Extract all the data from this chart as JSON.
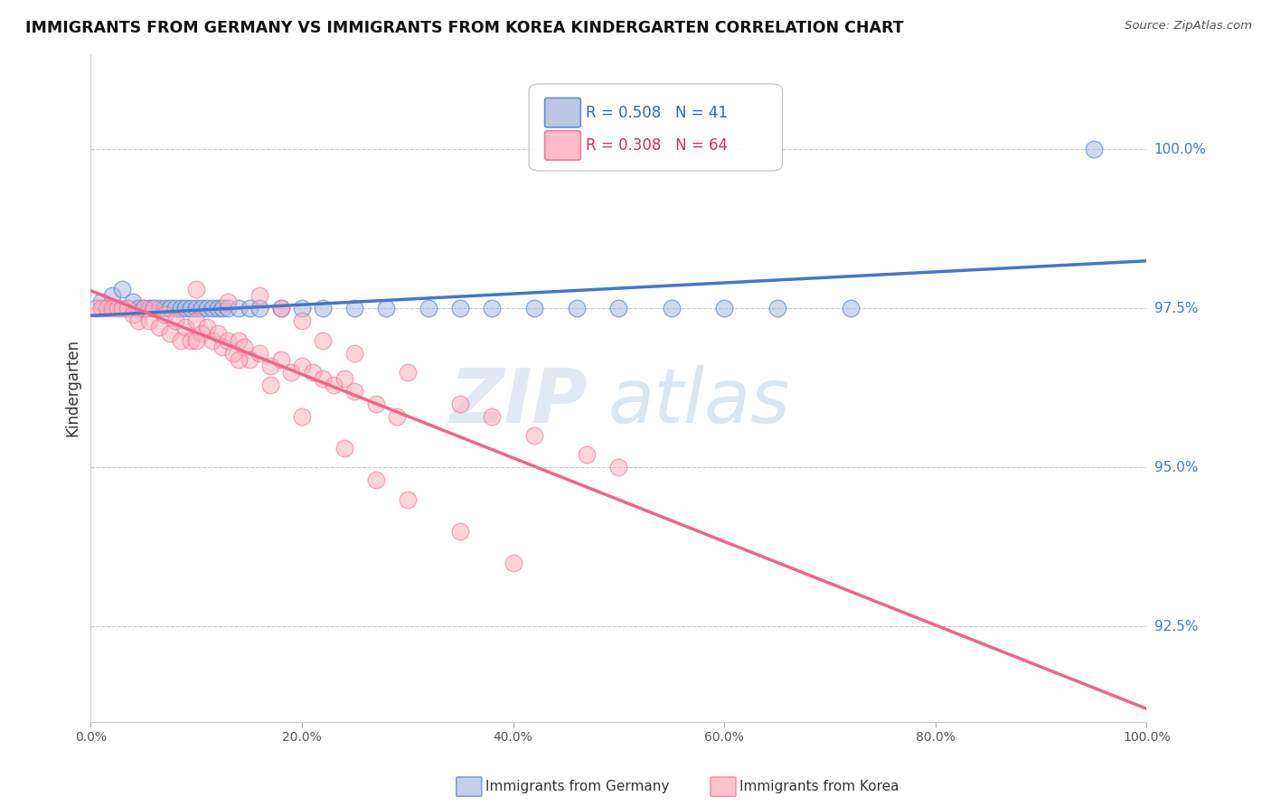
{
  "title": "IMMIGRANTS FROM GERMANY VS IMMIGRANTS FROM KOREA KINDERGARTEN CORRELATION CHART",
  "source": "Source: ZipAtlas.com",
  "ylabel": "Kindergarten",
  "right_yticks": [
    100.0,
    97.5,
    95.0,
    92.5
  ],
  "legend_germany": "R = 0.508   N = 41",
  "legend_korea": "R = 0.308   N = 64",
  "color_germany": "#aabbdd",
  "color_korea": "#ffaabb",
  "trend_germany_color": "#4477cc",
  "trend_korea_color": "#ee6688",
  "germany_scatter_x": [
    0.01,
    0.02,
    0.03,
    0.04,
    0.045,
    0.05,
    0.055,
    0.06,
    0.065,
    0.07,
    0.075,
    0.08,
    0.085,
    0.09,
    0.095,
    0.1,
    0.105,
    0.11,
    0.115,
    0.12,
    0.125,
    0.13,
    0.14,
    0.15,
    0.16,
    0.18,
    0.2,
    0.22,
    0.25,
    0.28,
    0.32,
    0.35,
    0.38,
    0.42,
    0.46,
    0.5,
    0.55,
    0.6,
    0.65,
    0.72,
    0.95
  ],
  "germany_scatter_y": [
    97.6,
    97.7,
    97.8,
    97.6,
    97.5,
    97.5,
    97.5,
    97.5,
    97.5,
    97.5,
    97.5,
    97.5,
    97.5,
    97.5,
    97.5,
    97.5,
    97.5,
    97.5,
    97.5,
    97.5,
    97.5,
    97.5,
    97.5,
    97.5,
    97.5,
    97.5,
    97.5,
    97.5,
    97.5,
    97.5,
    97.5,
    97.5,
    97.5,
    97.5,
    97.5,
    97.5,
    97.5,
    97.5,
    97.5,
    97.5,
    100.0
  ],
  "korea_scatter_x": [
    0.005,
    0.01,
    0.015,
    0.02,
    0.025,
    0.03,
    0.035,
    0.04,
    0.045,
    0.05,
    0.055,
    0.06,
    0.065,
    0.07,
    0.075,
    0.08,
    0.085,
    0.09,
    0.095,
    0.1,
    0.105,
    0.11,
    0.115,
    0.12,
    0.125,
    0.13,
    0.135,
    0.14,
    0.145,
    0.15,
    0.16,
    0.17,
    0.18,
    0.19,
    0.2,
    0.21,
    0.22,
    0.23,
    0.24,
    0.25,
    0.27,
    0.29,
    0.1,
    0.13,
    0.16,
    0.18,
    0.2,
    0.22,
    0.25,
    0.3,
    0.35,
    0.38,
    0.42,
    0.47,
    0.5,
    0.1,
    0.14,
    0.17,
    0.2,
    0.24,
    0.27,
    0.3,
    0.35,
    0.4
  ],
  "korea_scatter_y": [
    97.5,
    97.5,
    97.5,
    97.5,
    97.5,
    97.5,
    97.5,
    97.4,
    97.3,
    97.5,
    97.3,
    97.5,
    97.2,
    97.4,
    97.1,
    97.3,
    97.0,
    97.2,
    97.0,
    97.3,
    97.1,
    97.2,
    97.0,
    97.1,
    96.9,
    97.0,
    96.8,
    97.0,
    96.9,
    96.7,
    96.8,
    96.6,
    96.7,
    96.5,
    96.6,
    96.5,
    96.4,
    96.3,
    96.4,
    96.2,
    96.0,
    95.8,
    97.8,
    97.6,
    97.7,
    97.5,
    97.3,
    97.0,
    96.8,
    96.5,
    96.0,
    95.8,
    95.5,
    95.2,
    95.0,
    97.0,
    96.7,
    96.3,
    95.8,
    95.3,
    94.8,
    94.5,
    94.0,
    93.5
  ],
  "watermark_zip": "ZIP",
  "watermark_atlas": "atlas",
  "background_color": "#ffffff",
  "plot_bg_color": "#ffffff",
  "grid_color": "#cccccc",
  "xlim": [
    0.0,
    1.0
  ],
  "ylim": [
    91.0,
    101.5
  ]
}
